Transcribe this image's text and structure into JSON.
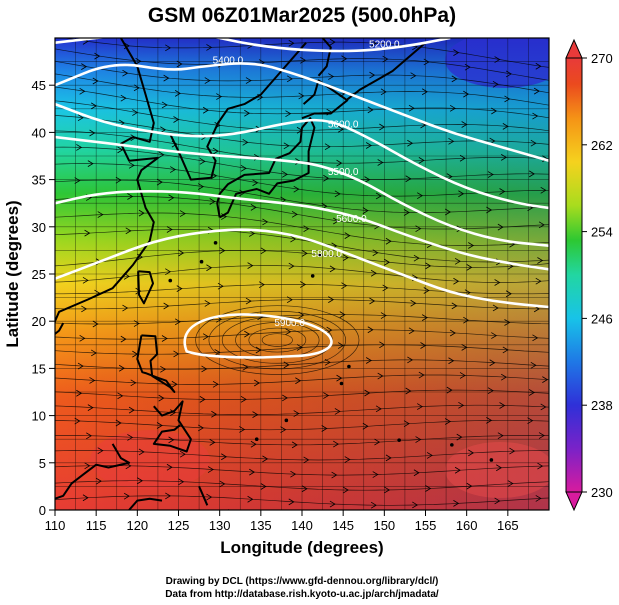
{
  "title": "GSM 06Z01Mar2025 (500.0hPa)",
  "x_axis": {
    "label": "Longitude (degrees)",
    "ticks": [
      "110",
      "115",
      "120",
      "125",
      "130",
      "135",
      "140",
      "145",
      "150",
      "155",
      "160",
      "165"
    ],
    "range": [
      110,
      170
    ]
  },
  "y_axis": {
    "label": "Latitude  (degrees)",
    "ticks": [
      "0",
      "5",
      "10",
      "15",
      "20",
      "25",
      "30",
      "35",
      "40",
      "45"
    ],
    "range": [
      0,
      50
    ]
  },
  "colorbar": {
    "ticks": [
      "230",
      "238",
      "246",
      "254",
      "262",
      "270"
    ],
    "range": [
      230,
      270
    ],
    "colors": [
      "#d81b9e",
      "#7a22c8",
      "#2f30d8",
      "#1f78e6",
      "#18c3e8",
      "#22d6a2",
      "#2dc832",
      "#a8dc1e",
      "#f5d21e",
      "#f59416",
      "#eb4a1e",
      "#e83a3a"
    ]
  },
  "contours": [
    {
      "label": "5200.0"
    },
    {
      "label": "5400.0"
    },
    {
      "label": "5600.0"
    },
    {
      "label": "5500.0"
    },
    {
      "label": "5600.0"
    },
    {
      "label": "5800.0"
    },
    {
      "label": "5900.0"
    }
  ],
  "credits": {
    "line1": "Drawing by DCL (https://www.gfd-dennou.org/library/dcl/)",
    "line2": "Data from http://database.rish.kyoto-u.ac.jp/arch/jmadata/"
  }
}
